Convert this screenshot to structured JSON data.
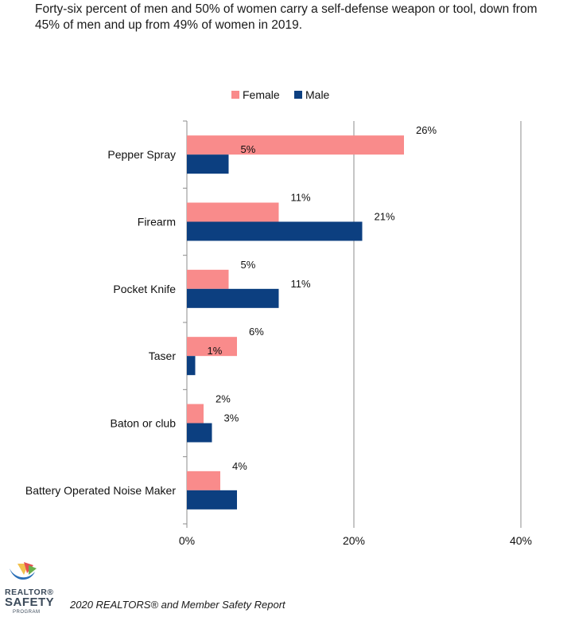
{
  "header": {
    "text": "Forty-six percent of men and 50% of women carry a self-defense weapon or tool, down from 45% of men and up from 49% of women in 2019."
  },
  "colors": {
    "female": "#f98b8b",
    "male": "#0c3f80",
    "gridline": "#8c8c8c",
    "axis": "#8c8c8c"
  },
  "chart_data": {
    "type": "bar",
    "orientation": "horizontal",
    "categories": [
      "Pepper Spray",
      "Firearm",
      "Pocket Knife",
      "Taser",
      "Baton or club",
      "Battery Operated Noise Maker"
    ],
    "series": [
      {
        "name": "Female",
        "values": [
          26,
          11,
          5,
          6,
          2,
          4
        ],
        "labels": [
          "26%",
          "11%",
          "5%",
          "6%",
          "2%",
          "4%"
        ]
      },
      {
        "name": "Male",
        "values": [
          5,
          21,
          11,
          1,
          3,
          6
        ],
        "labels": [
          "5%",
          "21%",
          "11%",
          "1%",
          "3%",
          ""
        ]
      }
    ],
    "xlim": [
      0,
      40
    ],
    "xticks": [
      0,
      20,
      40
    ],
    "xtick_labels": [
      "0%",
      "20%",
      "40%"
    ],
    "grid": true,
    "legend": "top"
  },
  "footer": {
    "logo_text_1": "REALTOR®",
    "logo_text_2": "SAFETY",
    "logo_text_3": "PROGRAM",
    "source": "2020 REALTORS® and Member Safety Report"
  }
}
